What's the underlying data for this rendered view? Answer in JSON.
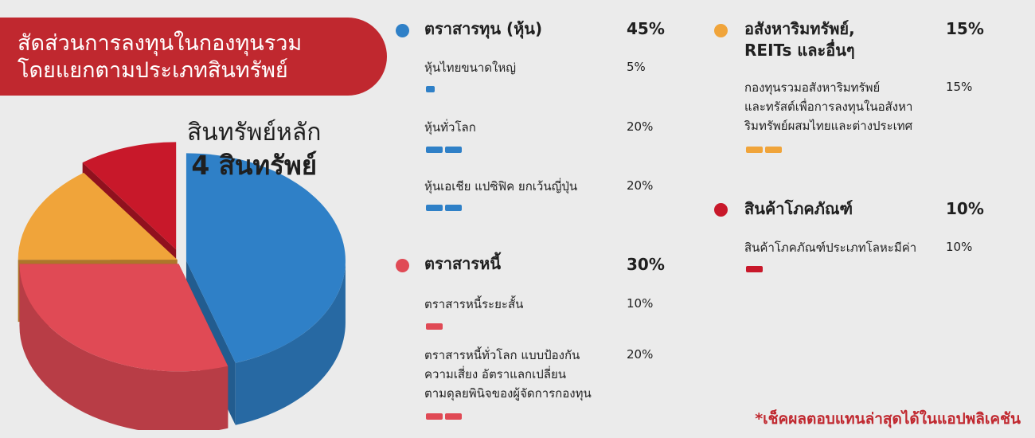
{
  "banner": {
    "line1": "สัดส่วนการลงทุนในกองทุนรวม",
    "line2": "โดยแยกตามประเภทสินทรัพย์"
  },
  "pie_title": {
    "line1": "สินทรัพย์หลัก",
    "line2": "4 สินทรัพย์"
  },
  "chart_data": {
    "type": "pie",
    "style": "3d-exploded",
    "slices": [
      {
        "label": "ตราสารทุน (หุ้น)",
        "value": 45,
        "color": "#2f80c7"
      },
      {
        "label": "ตราสารหนี้",
        "value": 30,
        "color": "#e04a55"
      },
      {
        "label": "อสังหาริมทรัพย์, REITs และอื่นๆ",
        "value": 15,
        "color": "#f0a43a"
      },
      {
        "label": "สินค้าโภคภัณฑ์",
        "value": 10,
        "color": "#c8182a"
      }
    ]
  },
  "categories": [
    {
      "name": "ตราสารทุน (หุ้น)",
      "pct": "45%",
      "color": "#2f80c7",
      "items": [
        {
          "name": "หุ้นไทยขนาดใหญ่",
          "pct": "5%",
          "value": 5
        },
        {
          "name": "หุ้นทั่วโลก",
          "pct": "20%",
          "value": 20
        },
        {
          "name": "หุ้นเอเชีย แปซิฟิค ยกเว้นญี่ปุ่น",
          "pct": "20%",
          "value": 20
        }
      ]
    },
    {
      "name": "ตราสารหนี้",
      "pct": "30%",
      "color": "#e04a55",
      "items": [
        {
          "name": "ตราสารหนี้ระยะสั้น",
          "pct": "10%",
          "value": 10
        },
        {
          "name_lines": [
            "ตราสารหนี้ทั่วโลก แบบป้องกัน",
            "ความเสี่ยง อัตราแลกเปลี่ยน",
            "ตามดุลยพินิจของผู้จัดการกองทุน"
          ],
          "pct": "20%",
          "value": 20
        }
      ]
    },
    {
      "name_lines": [
        "อสังหาริมทรัพย์,",
        "REITs และอื่นๆ"
      ],
      "pct": "15%",
      "color": "#f0a43a",
      "items": [
        {
          "name_lines": [
            "กองทุนรวมอสังหาริมทรัพย์",
            "และทรัสต์เพื่อการลงทุนในอสังหา",
            "ริมทรัพย์ผสมไทยและต่างประเทศ"
          ],
          "pct": "15%",
          "value": 15
        }
      ]
    },
    {
      "name": "สินค้าโภคภัณฑ์",
      "pct": "10%",
      "color": "#c8182a",
      "items": [
        {
          "name": "สินค้าโภคภัณฑ์ประเภทโลหะมีค่า",
          "pct": "10%",
          "value": 10
        }
      ]
    }
  ],
  "footnote": "*เช็คผลตอบแทนล่าสุดได้ในแอปพลิเคชัน"
}
